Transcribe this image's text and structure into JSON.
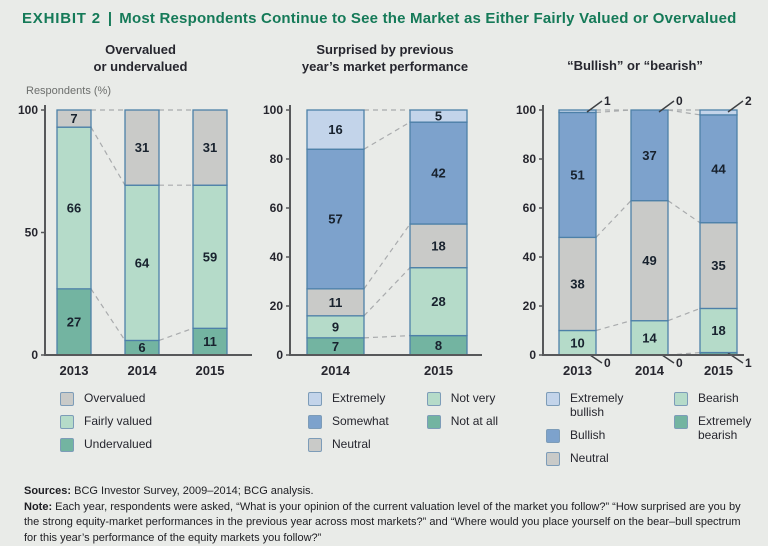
{
  "title": {
    "exhibit_label": "EXHIBIT 2",
    "separator": "|",
    "text": "Most Respondents Continue to See the Market as Either Fairly Valued or Overvalued"
  },
  "axis_caption": "Respondents (%)",
  "panel_titles": [
    "Overvalued\nor undervalued",
    "Surprised by previous\nyear’s market performance",
    "“Bullish” or “bearish”"
  ],
  "colors": {
    "background": "#e9ebe8",
    "title_green": "#157a58",
    "gray": "#c9cac8",
    "light_teal": "#b5dbc9",
    "dark_teal": "#73b4a1",
    "blue": "#7da2cc",
    "light_blue": "#c3d4ea",
    "segment_border": "#4d80a8",
    "axis": "#57585a",
    "dashed_line": "#a9abad",
    "value_label": "#18222e"
  },
  "chart_data": [
    {
      "type": "bar",
      "stacked": true,
      "title": "Overvalued or undervalued",
      "ylabel": "Respondents (%)",
      "ylim": [
        0,
        100
      ],
      "yticks": [
        0,
        50,
        100
      ],
      "categories": [
        "2013",
        "2014",
        "2015"
      ],
      "series": [
        {
          "name": "Undervalued",
          "color_key": "dark_teal",
          "values": [
            27,
            6,
            11
          ]
        },
        {
          "name": "Fairly valued",
          "color_key": "light_teal",
          "values": [
            66,
            64,
            59
          ]
        },
        {
          "name": "Overvalued",
          "color_key": "gray",
          "values": [
            7,
            31,
            31
          ]
        }
      ],
      "legend_columns": [
        [
          {
            "label": "Overvalued",
            "color_key": "gray"
          },
          {
            "label": "Fairly valued",
            "color_key": "light_teal"
          },
          {
            "label": "Undervalued",
            "color_key": "dark_teal"
          }
        ]
      ]
    },
    {
      "type": "bar",
      "stacked": true,
      "title": "Surprised by previous year’s market performance",
      "ylim": [
        0,
        100
      ],
      "yticks": [
        0,
        20,
        40,
        60,
        80,
        100
      ],
      "categories": [
        "2014",
        "2015"
      ],
      "series": [
        {
          "name": "Not at all",
          "color_key": "dark_teal",
          "values": [
            7,
            8
          ]
        },
        {
          "name": "Not very",
          "color_key": "light_teal",
          "values": [
            9,
            28
          ]
        },
        {
          "name": "Neutral",
          "color_key": "gray",
          "values": [
            11,
            18
          ]
        },
        {
          "name": "Somewhat",
          "color_key": "blue",
          "values": [
            57,
            42
          ]
        },
        {
          "name": "Extremely",
          "color_key": "light_blue",
          "values": [
            16,
            5
          ]
        }
      ],
      "legend_columns": [
        [
          {
            "label": "Extremely",
            "color_key": "light_blue"
          },
          {
            "label": "Somewhat",
            "color_key": "blue"
          },
          {
            "label": "Neutral",
            "color_key": "gray"
          }
        ],
        [
          {
            "label": "Not very",
            "color_key": "light_teal"
          },
          {
            "label": "Not at all",
            "color_key": "dark_teal"
          }
        ]
      ]
    },
    {
      "type": "bar",
      "stacked": true,
      "title": "“Bullish” or “bearish”",
      "ylim": [
        0,
        100
      ],
      "yticks": [
        0,
        20,
        40,
        60,
        80,
        100
      ],
      "categories": [
        "2013",
        "2014",
        "2015"
      ],
      "series": [
        {
          "name": "Extremely bearish",
          "color_key": "dark_teal",
          "values": [
            0,
            0,
            1
          ],
          "callout": "bottom"
        },
        {
          "name": "Bearish",
          "color_key": "light_teal",
          "values": [
            10,
            14,
            18
          ]
        },
        {
          "name": "Neutral",
          "color_key": "gray",
          "values": [
            38,
            49,
            35
          ]
        },
        {
          "name": "Bullish",
          "color_key": "blue",
          "values": [
            51,
            37,
            44
          ]
        },
        {
          "name": "Extremely bullish",
          "color_key": "light_blue",
          "values": [
            1,
            0,
            2
          ],
          "callout": "top"
        }
      ],
      "legend_columns": [
        [
          {
            "label": "Extremely bullish",
            "color_key": "light_blue"
          },
          {
            "label": "Bullish",
            "color_key": "blue"
          },
          {
            "label": "Neutral",
            "color_key": "gray"
          }
        ],
        [
          {
            "label": "Bearish",
            "color_key": "light_teal"
          },
          {
            "label": "Extremely bearish",
            "color_key": "dark_teal"
          }
        ]
      ]
    }
  ],
  "footer": {
    "sources_label": "Sources:",
    "sources_text": " BCG Investor Survey, 2009–2014; BCG analysis.",
    "note_label": "Note:",
    "note_text": " Each year, respondents were asked, “What is your opinion of the current valuation level of the market you follow?” “How surprised are you by the strong equity-market performances in the previous year across most markets?” and “Where would you place yourself on the bear–bull spectrum for this year’s performance of the equity markets you follow?”"
  }
}
